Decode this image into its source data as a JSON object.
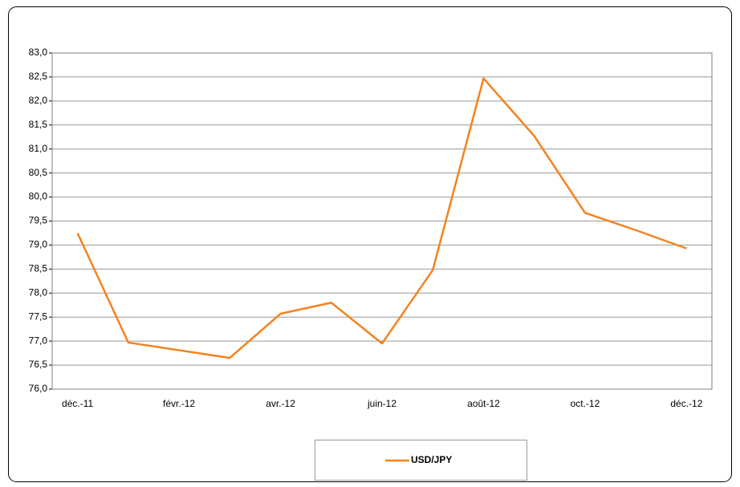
{
  "chart_data": {
    "type": "line",
    "categories": [
      "déc.-11",
      null,
      "févr.-12",
      null,
      "avr.-12",
      null,
      "juin-12",
      null,
      "août-12",
      null,
      "oct.-12",
      null,
      "déc.-12"
    ],
    "series": [
      {
        "name": "USD/JPY",
        "color": "#f5821f",
        "values": [
          79.25,
          76.97,
          76.81,
          76.65,
          77.57,
          77.8,
          76.95,
          78.48,
          82.47,
          81.27,
          79.67,
          79.31,
          78.93
        ]
      }
    ],
    "ylim": [
      76,
      83
    ],
    "yticks": [
      {
        "value": 76,
        "label": "76,0"
      },
      {
        "value": 76.5,
        "label": "76,5"
      },
      {
        "value": 77,
        "label": "77,0"
      },
      {
        "value": 77.5,
        "label": "77,5"
      },
      {
        "value": 78,
        "label": "78,0"
      },
      {
        "value": 78.5,
        "label": "78,5"
      },
      {
        "value": 79,
        "label": "79,0"
      },
      {
        "value": 79.5,
        "label": "79,5"
      },
      {
        "value": 80,
        "label": "80,0"
      },
      {
        "value": 80.5,
        "label": "80,5"
      },
      {
        "value": 81,
        "label": "81,0"
      },
      {
        "value": 81.5,
        "label": "81,5"
      },
      {
        "value": 82,
        "label": "82,0"
      },
      {
        "value": 82.5,
        "label": "82,5"
      },
      {
        "value": 83,
        "label": "83,0"
      }
    ],
    "grid": true,
    "legend": "bottom"
  }
}
